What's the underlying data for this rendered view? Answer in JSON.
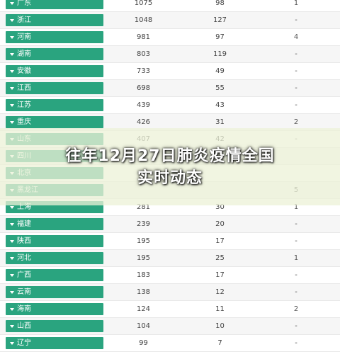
{
  "headline": {
    "line1": "往年12月27日肺炎疫情全国",
    "line2": "实时动态"
  },
  "colors": {
    "province_tag": "#2aa47f",
    "overlay": "#ecf2d8"
  },
  "table": {
    "rows": [
      {
        "province": "广东",
        "confirmed": "1075",
        "recovered": "98",
        "deaths": "1"
      },
      {
        "province": "浙江",
        "confirmed": "1048",
        "recovered": "127",
        "deaths": "-"
      },
      {
        "province": "河南",
        "confirmed": "981",
        "recovered": "97",
        "deaths": "4"
      },
      {
        "province": "湖南",
        "confirmed": "803",
        "recovered": "119",
        "deaths": "-"
      },
      {
        "province": "安徽",
        "confirmed": "733",
        "recovered": "49",
        "deaths": "-"
      },
      {
        "province": "江西",
        "confirmed": "698",
        "recovered": "55",
        "deaths": "-"
      },
      {
        "province": "江苏",
        "confirmed": "439",
        "recovered": "43",
        "deaths": "-"
      },
      {
        "province": "重庆",
        "confirmed": "426",
        "recovered": "31",
        "deaths": "2"
      },
      {
        "province": "山东",
        "confirmed": "407",
        "recovered": "42",
        "deaths": "-"
      },
      {
        "province": "四川",
        "confirmed": "",
        "recovered": "",
        "deaths": ""
      },
      {
        "province": "北京",
        "confirmed": "",
        "recovered": "",
        "deaths": ""
      },
      {
        "province": "黑龙江",
        "confirmed": "",
        "recovered": "",
        "deaths": "5"
      },
      {
        "province": "上海",
        "confirmed": "281",
        "recovered": "30",
        "deaths": "1"
      },
      {
        "province": "福建",
        "confirmed": "239",
        "recovered": "20",
        "deaths": "-"
      },
      {
        "province": "陕西",
        "confirmed": "195",
        "recovered": "17",
        "deaths": "-"
      },
      {
        "province": "河北",
        "confirmed": "195",
        "recovered": "25",
        "deaths": "1"
      },
      {
        "province": "广西",
        "confirmed": "183",
        "recovered": "17",
        "deaths": "-"
      },
      {
        "province": "云南",
        "confirmed": "138",
        "recovered": "12",
        "deaths": "-"
      },
      {
        "province": "海南",
        "confirmed": "124",
        "recovered": "11",
        "deaths": "2"
      },
      {
        "province": "山西",
        "confirmed": "104",
        "recovered": "10",
        "deaths": "-"
      },
      {
        "province": "辽宁",
        "confirmed": "99",
        "recovered": "7",
        "deaths": "-"
      }
    ]
  }
}
